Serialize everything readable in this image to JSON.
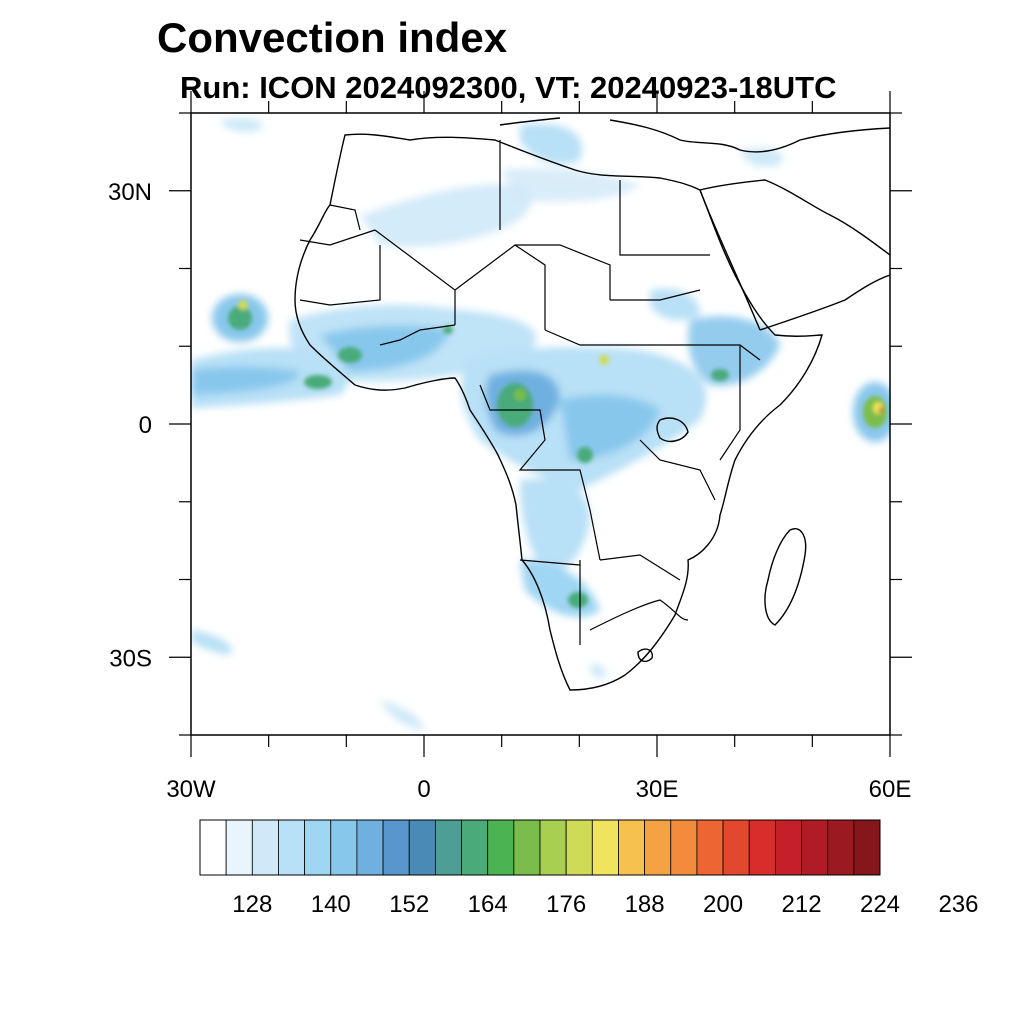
{
  "title": "Convection index",
  "subtitle": "Run: ICON 2024092300,  VT: 20240923-18UTC",
  "map": {
    "lon_range": [
      -30,
      60
    ],
    "lat_range": [
      -40,
      40
    ],
    "x_ticks": [
      {
        "label": "30W",
        "lon": -30
      },
      {
        "label": "0",
        "lon": 0
      },
      {
        "label": "30E",
        "lon": 30
      },
      {
        "label": "60E",
        "lon": 60
      }
    ],
    "y_ticks": [
      {
        "label": "30N",
        "lat": 30
      },
      {
        "label": "0",
        "lat": 0
      },
      {
        "label": "30S",
        "lat": -30
      }
    ],
    "land_color": "#ffffff",
    "boundary_color": "#000000"
  },
  "colorbar": {
    "colors": [
      "#ffffff",
      "#e9f5fc",
      "#cfe9f8",
      "#b8e0f6",
      "#9fd6f3",
      "#88c7ec",
      "#6fb0e0",
      "#5896cd",
      "#4a8bb5",
      "#4d9f95",
      "#4aaa7a",
      "#4bb351",
      "#7bbd4a",
      "#a8cf4f",
      "#cfdb57",
      "#f0e45e",
      "#f7c14f",
      "#f5a342",
      "#f28b3b",
      "#ec6532",
      "#e2482e",
      "#d72e2c",
      "#c52029",
      "#b01c26",
      "#9b1a22",
      "#84161c"
    ],
    "labels": [
      "128",
      "140",
      "152",
      "164",
      "176",
      "188",
      "200",
      "212",
      "224",
      "236"
    ]
  }
}
